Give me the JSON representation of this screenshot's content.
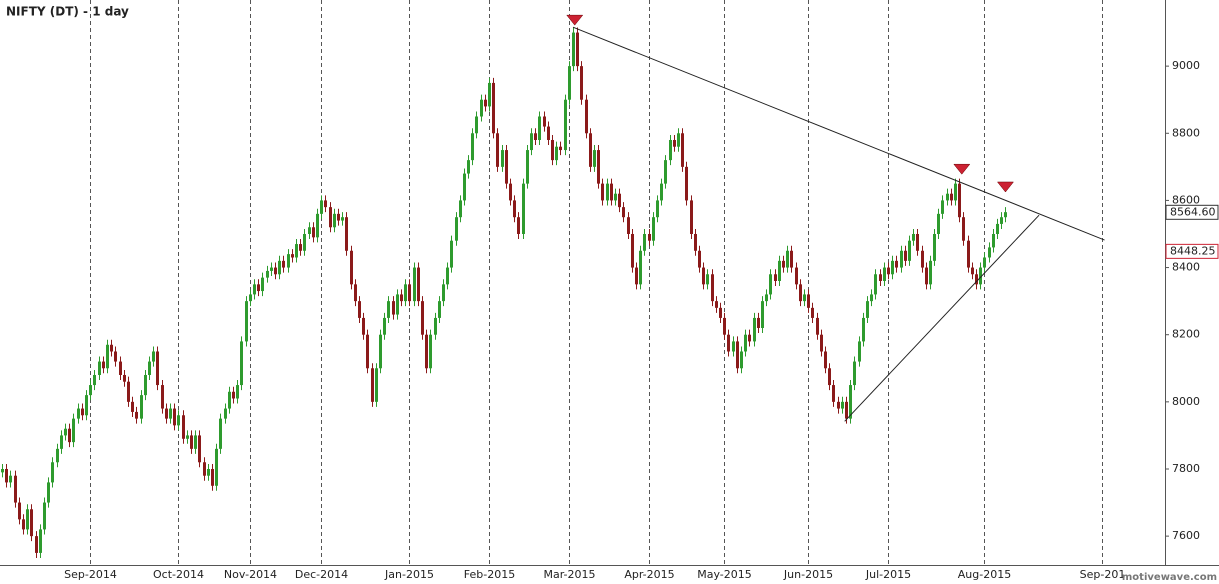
{
  "chart_data": {
    "type": "candlestick",
    "title": "NIFTY (DT) - 1 day",
    "watermark": "motivewave.com",
    "up_color": "#2e9b2e",
    "down_color": "#8b1a1a",
    "xlim": [
      -0.5,
      277
    ],
    "ylim": [
      7514,
      9197
    ],
    "xticks": [
      {
        "value": 21,
        "label": "Sep-2014"
      },
      {
        "value": 42,
        "label": "Oct-2014"
      },
      {
        "value": 59,
        "label": "Nov-2014"
      },
      {
        "value": 76,
        "label": "Dec-2014"
      },
      {
        "value": 97,
        "label": "Jan-2015"
      },
      {
        "value": 116,
        "label": "Feb-2015"
      },
      {
        "value": 135,
        "label": "Mar-2015"
      },
      {
        "value": 154,
        "label": "Apr-2015"
      },
      {
        "value": 172,
        "label": "May-2015"
      },
      {
        "value": 192,
        "label": "Jun-2015"
      },
      {
        "value": 211,
        "label": "Jul-2015"
      },
      {
        "value": 234,
        "label": "Aug-2015"
      },
      {
        "value": 262,
        "label": "Sep-201"
      }
    ],
    "yticks": [
      7600,
      7800,
      8000,
      8200,
      8400,
      8600,
      8800,
      9000
    ],
    "price_tags": [
      {
        "value": 8564.6,
        "label": "8564.60",
        "color": "#333333"
      },
      {
        "value": 8448.25,
        "label": "8448.25",
        "color": "#cc2233"
      }
    ],
    "trendlines": [
      {
        "x": [
          136,
          262.6
        ],
        "y": [
          9116,
          8482
        ]
      },
      {
        "x": [
          200.7,
          247
        ],
        "y": [
          7942,
          8556
        ]
      }
    ],
    "markers": {
      "color": "#cc2233",
      "x": [
        136.4,
        228.6,
        239
      ],
      "y": [
        9137,
        8693,
        8640
      ]
    },
    "ohlc": [
      [
        7790,
        7815,
        7775,
        7800
      ],
      [
        7800,
        7815,
        7745,
        7760
      ],
      [
        7760,
        7795,
        7745,
        7780
      ],
      [
        7780,
        7795,
        7685,
        7700
      ],
      [
        7700,
        7715,
        7635,
        7650
      ],
      [
        7650,
        7665,
        7605,
        7620
      ],
      [
        7620,
        7695,
        7605,
        7680
      ],
      [
        7680,
        7695,
        7585,
        7600
      ],
      [
        7600,
        7615,
        7535,
        7550
      ],
      [
        7550,
        7635,
        7535,
        7620
      ],
      [
        7620,
        7715,
        7605,
        7700
      ],
      [
        7700,
        7775,
        7685,
        7760
      ],
      [
        7760,
        7835,
        7745,
        7820
      ],
      [
        7820,
        7875,
        7805,
        7860
      ],
      [
        7860,
        7915,
        7845,
        7900
      ],
      [
        7900,
        7935,
        7885,
        7920
      ],
      [
        7920,
        7935,
        7865,
        7880
      ],
      [
        7880,
        7965,
        7865,
        7950
      ],
      [
        7950,
        7995,
        7935,
        7980
      ],
      [
        7980,
        7995,
        7945,
        7960
      ],
      [
        7960,
        8035,
        7945,
        8020
      ],
      [
        8020,
        8065,
        8005,
        8050
      ],
      [
        8050,
        8095,
        8035,
        8080
      ],
      [
        8080,
        8135,
        8065,
        8120
      ],
      [
        8120,
        8135,
        8085,
        8100
      ],
      [
        8100,
        8185,
        8085,
        8170
      ],
      [
        8170,
        8185,
        8135,
        8150
      ],
      [
        8150,
        8165,
        8105,
        8120
      ],
      [
        8120,
        8135,
        8065,
        8080
      ],
      [
        8080,
        8095,
        8045,
        8060
      ],
      [
        8060,
        8075,
        7985,
        8000
      ],
      [
        8000,
        8015,
        7955,
        7970
      ],
      [
        7970,
        7985,
        7935,
        7950
      ],
      [
        7950,
        8035,
        7935,
        8020
      ],
      [
        8020,
        8095,
        8005,
        8080
      ],
      [
        8080,
        8135,
        8065,
        8120
      ],
      [
        8120,
        8165,
        8105,
        8150
      ],
      [
        8150,
        8165,
        8035,
        8050
      ],
      [
        8050,
        8065,
        7965,
        7980
      ],
      [
        7980,
        7995,
        7935,
        7950
      ],
      [
        7950,
        7995,
        7935,
        7980
      ],
      [
        7980,
        7995,
        7915,
        7930
      ],
      [
        7930,
        7975,
        7915,
        7960
      ],
      [
        7960,
        7975,
        7875,
        7890
      ],
      [
        7890,
        7915,
        7875,
        7900
      ],
      [
        7900,
        7915,
        7845,
        7860
      ],
      [
        7860,
        7915,
        7845,
        7900
      ],
      [
        7900,
        7915,
        7805,
        7820
      ],
      [
        7820,
        7835,
        7765,
        7780
      ],
      [
        7780,
        7815,
        7765,
        7800
      ],
      [
        7800,
        7815,
        7735,
        7750
      ],
      [
        7750,
        7875,
        7735,
        7860
      ],
      [
        7860,
        7965,
        7845,
        7950
      ],
      [
        7950,
        7995,
        7935,
        7980
      ],
      [
        7980,
        8045,
        7965,
        8030
      ],
      [
        8030,
        8045,
        7995,
        8010
      ],
      [
        8010,
        8065,
        7995,
        8050
      ],
      [
        8050,
        8195,
        8035,
        8180
      ],
      [
        8180,
        8315,
        8165,
        8300
      ],
      [
        8300,
        8335,
        8285,
        8320
      ],
      [
        8320,
        8365,
        8305,
        8350
      ],
      [
        8350,
        8365,
        8315,
        8330
      ],
      [
        8330,
        8385,
        8315,
        8370
      ],
      [
        8370,
        8405,
        8355,
        8390
      ],
      [
        8390,
        8415,
        8375,
        8400
      ],
      [
        8400,
        8415,
        8365,
        8380
      ],
      [
        8380,
        8435,
        8365,
        8420
      ],
      [
        8420,
        8435,
        8385,
        8400
      ],
      [
        8400,
        8455,
        8385,
        8440
      ],
      [
        8440,
        8455,
        8415,
        8430
      ],
      [
        8430,
        8485,
        8415,
        8470
      ],
      [
        8470,
        8485,
        8435,
        8450
      ],
      [
        8450,
        8515,
        8435,
        8500
      ],
      [
        8500,
        8535,
        8485,
        8520
      ],
      [
        8520,
        8535,
        8475,
        8490
      ],
      [
        8490,
        8575,
        8475,
        8560
      ],
      [
        8560,
        8615,
        8545,
        8600
      ],
      [
        8600,
        8615,
        8565,
        8580
      ],
      [
        8580,
        8595,
        8505,
        8520
      ],
      [
        8520,
        8575,
        8505,
        8560
      ],
      [
        8560,
        8575,
        8525,
        8540
      ],
      [
        8540,
        8565,
        8525,
        8550
      ],
      [
        8550,
        8565,
        8435,
        8450
      ],
      [
        8450,
        8465,
        8335,
        8350
      ],
      [
        8350,
        8365,
        8285,
        8300
      ],
      [
        8300,
        8315,
        8235,
        8250
      ],
      [
        8250,
        8265,
        8185,
        8200
      ],
      [
        8200,
        8215,
        8085,
        8100
      ],
      [
        8100,
        8115,
        7985,
        8000
      ],
      [
        8000,
        8115,
        7985,
        8100
      ],
      [
        8100,
        8215,
        8085,
        8200
      ],
      [
        8200,
        8265,
        8185,
        8250
      ],
      [
        8250,
        8315,
        8235,
        8300
      ],
      [
        8300,
        8315,
        8245,
        8260
      ],
      [
        8260,
        8335,
        8245,
        8320
      ],
      [
        8320,
        8335,
        8285,
        8300
      ],
      [
        8300,
        8365,
        8285,
        8350
      ],
      [
        8350,
        8365,
        8285,
        8300
      ],
      [
        8300,
        8415,
        8285,
        8400
      ],
      [
        8400,
        8415,
        8285,
        8300
      ],
      [
        8300,
        8315,
        8185,
        8200
      ],
      [
        8200,
        8215,
        8085,
        8100
      ],
      [
        8100,
        8215,
        8085,
        8200
      ],
      [
        8200,
        8265,
        8185,
        8250
      ],
      [
        8250,
        8315,
        8235,
        8300
      ],
      [
        8300,
        8365,
        8285,
        8350
      ],
      [
        8350,
        8415,
        8335,
        8400
      ],
      [
        8400,
        8495,
        8385,
        8480
      ],
      [
        8480,
        8565,
        8465,
        8550
      ],
      [
        8550,
        8615,
        8535,
        8600
      ],
      [
        8600,
        8695,
        8585,
        8680
      ],
      [
        8680,
        8735,
        8665,
        8720
      ],
      [
        8720,
        8815,
        8705,
        8800
      ],
      [
        8800,
        8865,
        8785,
        8850
      ],
      [
        8850,
        8915,
        8835,
        8900
      ],
      [
        8900,
        8915,
        8865,
        8880
      ],
      [
        8880,
        8965,
        8865,
        8950
      ],
      [
        8950,
        8965,
        8785,
        8800
      ],
      [
        8800,
        8815,
        8685,
        8700
      ],
      [
        8700,
        8765,
        8685,
        8750
      ],
      [
        8750,
        8765,
        8635,
        8650
      ],
      [
        8650,
        8665,
        8585,
        8600
      ],
      [
        8600,
        8615,
        8535,
        8550
      ],
      [
        8550,
        8565,
        8485,
        8500
      ],
      [
        8500,
        8665,
        8485,
        8650
      ],
      [
        8650,
        8765,
        8635,
        8750
      ],
      [
        8750,
        8815,
        8735,
        8800
      ],
      [
        8800,
        8815,
        8765,
        8780
      ],
      [
        8780,
        8865,
        8765,
        8850
      ],
      [
        8850,
        8865,
        8805,
        8820
      ],
      [
        8820,
        8835,
        8765,
        8780
      ],
      [
        8780,
        8795,
        8705,
        8720
      ],
      [
        8720,
        8775,
        8705,
        8760
      ],
      [
        8760,
        8775,
        8735,
        8750
      ],
      [
        8750,
        8915,
        8735,
        8900
      ],
      [
        8900,
        9015,
        8885,
        9000
      ],
      [
        9000,
        9115,
        8985,
        9100
      ],
      [
        9100,
        9115,
        8985,
        9000
      ],
      [
        9000,
        9015,
        8885,
        8900
      ],
      [
        8900,
        8915,
        8785,
        8800
      ],
      [
        8800,
        8815,
        8685,
        8700
      ],
      [
        8700,
        8765,
        8685,
        8750
      ],
      [
        8750,
        8765,
        8635,
        8650
      ],
      [
        8650,
        8665,
        8585,
        8600
      ],
      [
        8600,
        8665,
        8585,
        8650
      ],
      [
        8650,
        8665,
        8585,
        8600
      ],
      [
        8600,
        8635,
        8585,
        8620
      ],
      [
        8620,
        8635,
        8565,
        8580
      ],
      [
        8580,
        8595,
        8535,
        8550
      ],
      [
        8550,
        8565,
        8485,
        8500
      ],
      [
        8500,
        8515,
        8385,
        8400
      ],
      [
        8400,
        8415,
        8335,
        8350
      ],
      [
        8350,
        8465,
        8335,
        8450
      ],
      [
        8450,
        8515,
        8435,
        8500
      ],
      [
        8500,
        8515,
        8465,
        8480
      ],
      [
        8480,
        8565,
        8465,
        8550
      ],
      [
        8550,
        8615,
        8535,
        8600
      ],
      [
        8600,
        8665,
        8585,
        8650
      ],
      [
        8650,
        8735,
        8635,
        8720
      ],
      [
        8720,
        8795,
        8705,
        8780
      ],
      [
        8780,
        8795,
        8745,
        8760
      ],
      [
        8760,
        8815,
        8745,
        8800
      ],
      [
        8800,
        8815,
        8685,
        8700
      ],
      [
        8700,
        8715,
        8585,
        8600
      ],
      [
        8600,
        8615,
        8485,
        8500
      ],
      [
        8500,
        8515,
        8435,
        8450
      ],
      [
        8450,
        8465,
        8385,
        8400
      ],
      [
        8400,
        8415,
        8335,
        8350
      ],
      [
        8350,
        8395,
        8335,
        8380
      ],
      [
        8380,
        8395,
        8285,
        8300
      ],
      [
        8300,
        8315,
        8265,
        8280
      ],
      [
        8280,
        8295,
        8235,
        8250
      ],
      [
        8250,
        8265,
        8185,
        8200
      ],
      [
        8200,
        8215,
        8135,
        8150
      ],
      [
        8150,
        8195,
        8135,
        8180
      ],
      [
        8180,
        8195,
        8085,
        8100
      ],
      [
        8100,
        8165,
        8085,
        8150
      ],
      [
        8150,
        8215,
        8135,
        8200
      ],
      [
        8200,
        8215,
        8165,
        8180
      ],
      [
        8180,
        8265,
        8165,
        8250
      ],
      [
        8250,
        8265,
        8205,
        8220
      ],
      [
        8220,
        8315,
        8205,
        8300
      ],
      [
        8300,
        8335,
        8285,
        8320
      ],
      [
        8320,
        8395,
        8305,
        8380
      ],
      [
        8380,
        8395,
        8345,
        8360
      ],
      [
        8360,
        8435,
        8345,
        8420
      ],
      [
        8420,
        8435,
        8385,
        8400
      ],
      [
        8400,
        8465,
        8385,
        8450
      ],
      [
        8450,
        8465,
        8385,
        8400
      ],
      [
        8400,
        8415,
        8335,
        8350
      ],
      [
        8350,
        8365,
        8285,
        8300
      ],
      [
        8300,
        8335,
        8285,
        8320
      ],
      [
        8320,
        8335,
        8265,
        8280
      ],
      [
        8280,
        8295,
        8235,
        8250
      ],
      [
        8250,
        8265,
        8185,
        8200
      ],
      [
        8200,
        8215,
        8135,
        8150
      ],
      [
        8150,
        8165,
        8085,
        8100
      ],
      [
        8100,
        8115,
        8035,
        8050
      ],
      [
        8050,
        8065,
        7985,
        8000
      ],
      [
        8000,
        8015,
        7965,
        7980
      ],
      [
        7980,
        8015,
        7965,
        8000
      ],
      [
        8000,
        8015,
        7935,
        7950
      ],
      [
        7950,
        8065,
        7935,
        8050
      ],
      [
        8050,
        8135,
        8035,
        8120
      ],
      [
        8120,
        8195,
        8105,
        8180
      ],
      [
        8180,
        8265,
        8165,
        8250
      ],
      [
        8250,
        8315,
        8235,
        8300
      ],
      [
        8300,
        8335,
        8285,
        8320
      ],
      [
        8320,
        8395,
        8305,
        8380
      ],
      [
        8380,
        8395,
        8345,
        8360
      ],
      [
        8360,
        8415,
        8345,
        8400
      ],
      [
        8400,
        8415,
        8365,
        8380
      ],
      [
        8380,
        8435,
        8365,
        8420
      ],
      [
        8420,
        8435,
        8385,
        8400
      ],
      [
        8400,
        8465,
        8385,
        8450
      ],
      [
        8450,
        8465,
        8405,
        8420
      ],
      [
        8420,
        8495,
        8405,
        8480
      ],
      [
        8480,
        8515,
        8465,
        8500
      ],
      [
        8500,
        8515,
        8435,
        8450
      ],
      [
        8450,
        8465,
        8385,
        8400
      ],
      [
        8400,
        8415,
        8335,
        8350
      ],
      [
        8350,
        8435,
        8335,
        8420
      ],
      [
        8420,
        8515,
        8405,
        8500
      ],
      [
        8500,
        8575,
        8485,
        8560
      ],
      [
        8560,
        8615,
        8545,
        8600
      ],
      [
        8600,
        8635,
        8585,
        8620
      ],
      [
        8620,
        8635,
        8585,
        8600
      ],
      [
        8600,
        8665,
        8585,
        8650
      ],
      [
        8650,
        8665,
        8535,
        8550
      ],
      [
        8550,
        8565,
        8465,
        8480
      ],
      [
        8480,
        8495,
        8385,
        8400
      ],
      [
        8400,
        8415,
        8365,
        8380
      ],
      [
        8380,
        8395,
        8335,
        8350
      ],
      [
        8350,
        8415,
        8335,
        8400
      ],
      [
        8400,
        8445,
        8385,
        8430
      ],
      [
        8430,
        8475,
        8415,
        8460
      ],
      [
        8460,
        8515,
        8445,
        8500
      ],
      [
        8500,
        8545,
        8485,
        8530
      ],
      [
        8530,
        8565,
        8515,
        8550
      ],
      [
        8550,
        8580,
        8535,
        8565
      ]
    ]
  }
}
